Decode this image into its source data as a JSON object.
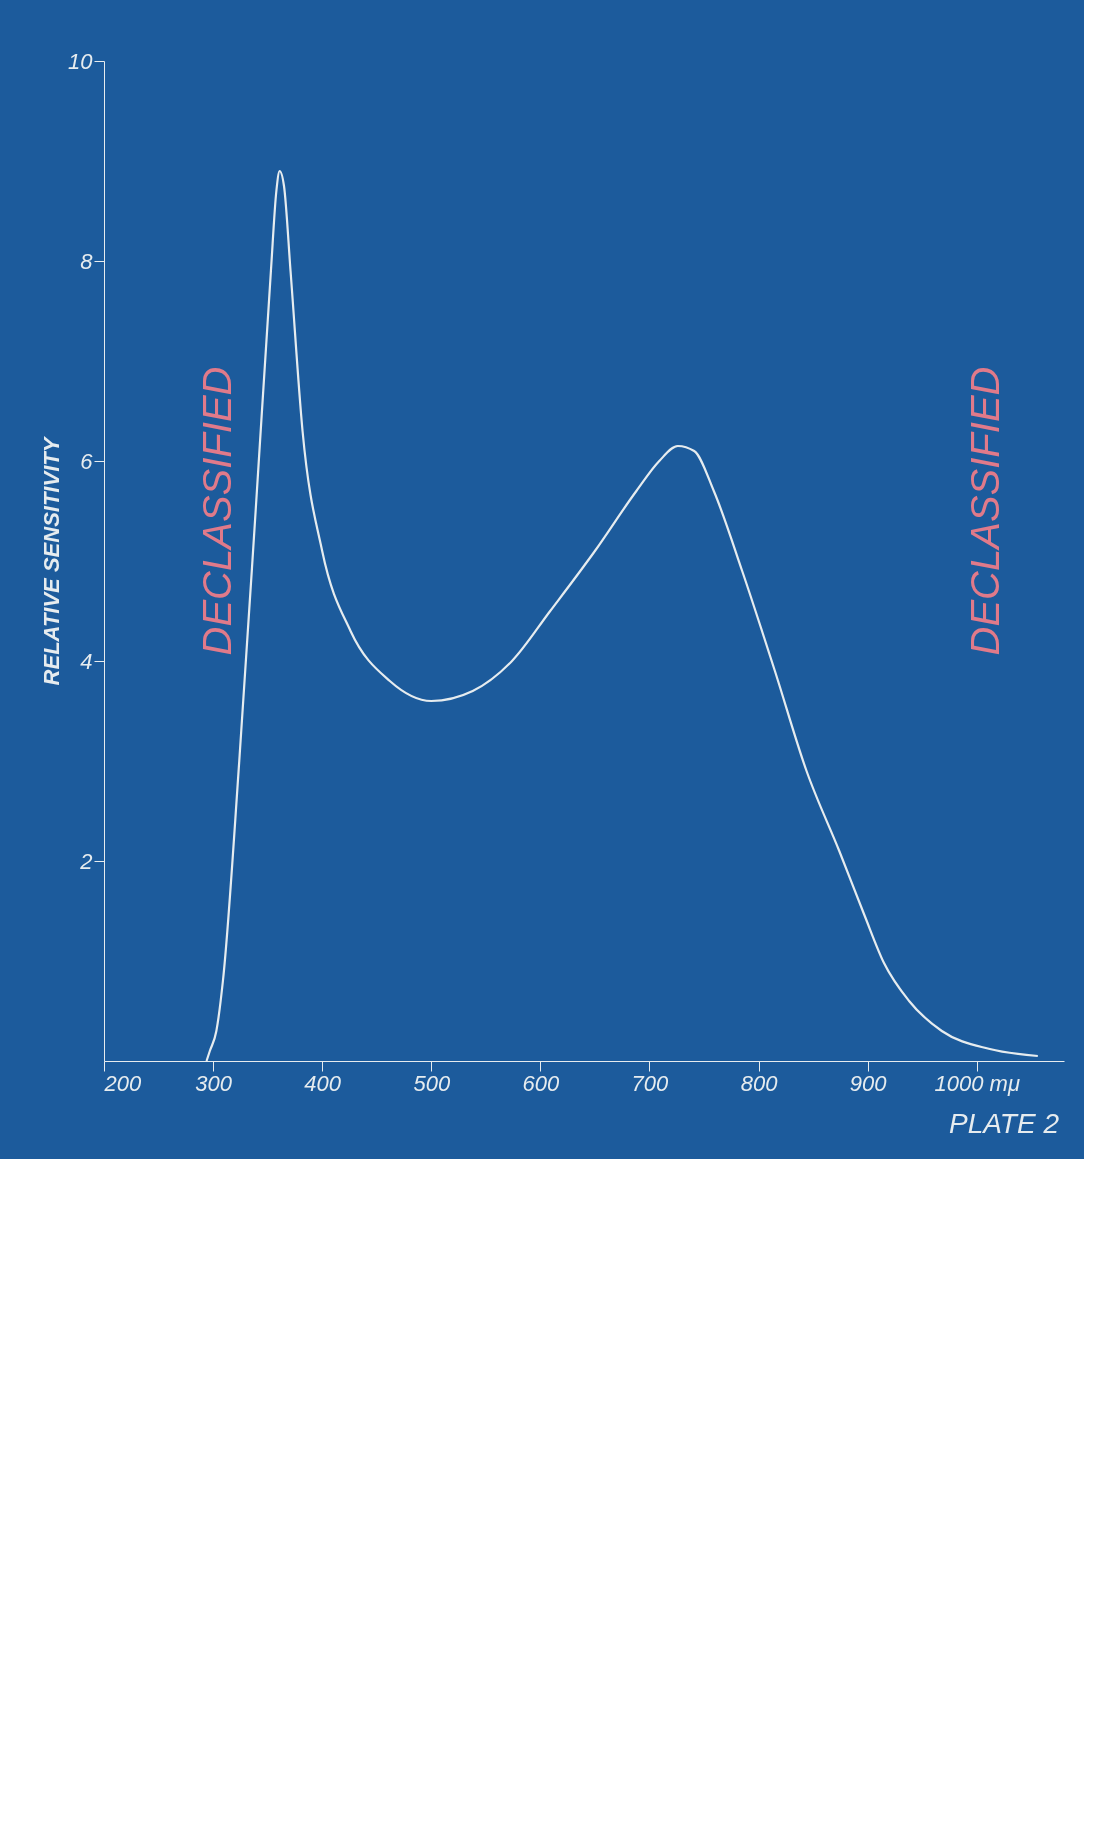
{
  "chart_data": {
    "type": "line",
    "ylabel": "RELATIVE SENSITIVITY",
    "color": "#e6ecef",
    "x": [
      294,
      297,
      303,
      309,
      324,
      339,
      353,
      358,
      361,
      365,
      371,
      382,
      400,
      426,
      462,
      500,
      538,
      574,
      609,
      650,
      688,
      709,
      726,
      741,
      759,
      785,
      815,
      844,
      874,
      897,
      915,
      938,
      968,
      1012,
      1056
    ],
    "values": [
      0,
      0.1,
      0.3,
      0.8,
      3.0,
      5.5,
      7.9,
      8.7,
      8.9,
      8.75,
      7.9,
      6.3,
      5.1,
      4.3,
      3.8,
      3.6,
      3.7,
      4.0,
      4.5,
      5.1,
      5.7,
      6.0,
      6.15,
      6.1,
      5.7,
      4.9,
      3.9,
      2.9,
      2.1,
      1.46,
      0.98,
      0.6,
      0.3,
      0.12,
      0.05
    ],
    "xlim": [
      200,
      1080
    ],
    "ylim": [
      0,
      10
    ],
    "xticks": [
      200,
      300,
      400,
      500,
      600,
      700,
      800,
      900,
      {
        "value": 1000,
        "label": "1000 mμ"
      }
    ],
    "yticks": [
      2,
      4,
      6,
      8,
      10
    ],
    "grid": false,
    "annotations": [
      "PLATE 2",
      "DECLASSIFIED",
      "DECLASSIFIED"
    ]
  }
}
